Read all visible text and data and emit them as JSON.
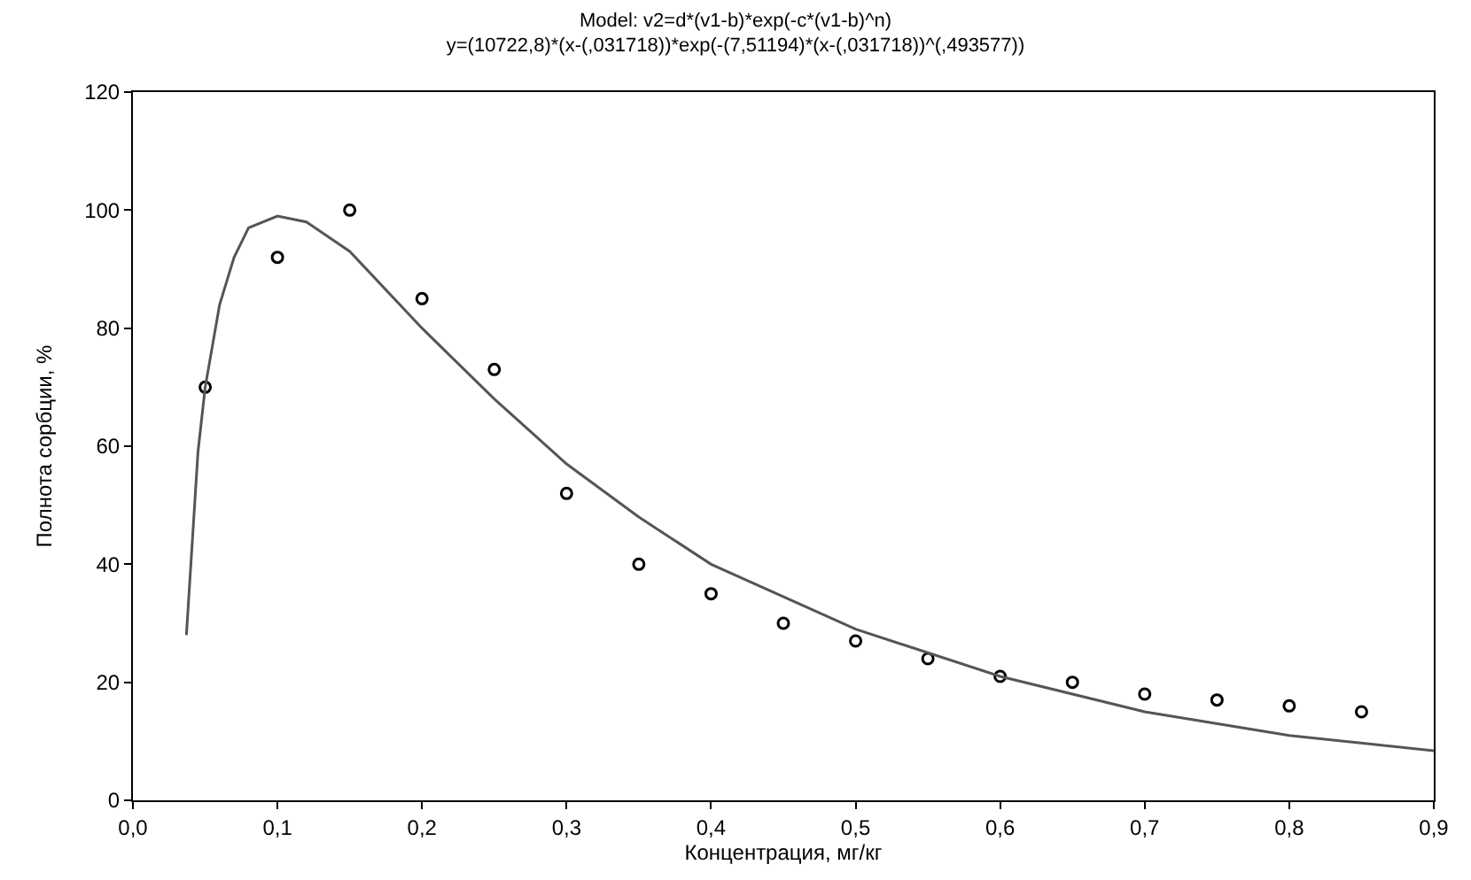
{
  "chart_data": {
    "type": "scatter",
    "title": "Model: v2=d*(v1-b)*exp(-c*(v1-b)^n)",
    "subtitle": "y=(10722,8)*(x-(,031718))*exp(-(7,51194)*(x-(,031718))^(,493577))",
    "xlabel": "Концентрация, мг/кг",
    "ylabel": "Полнота сорбции, %",
    "xlim": [
      0,
      0.9
    ],
    "ylim": [
      0,
      120
    ],
    "xticks": [
      {
        "value": 0,
        "label": "0,0"
      },
      {
        "value": 0.1,
        "label": "0,1"
      },
      {
        "value": 0.2,
        "label": "0,2"
      },
      {
        "value": 0.3,
        "label": "0,3"
      },
      {
        "value": 0.4,
        "label": "0,4"
      },
      {
        "value": 0.5,
        "label": "0,5"
      },
      {
        "value": 0.6,
        "label": "0,6"
      },
      {
        "value": 0.7,
        "label": "0,7"
      },
      {
        "value": 0.8,
        "label": "0,8"
      },
      {
        "value": 0.9,
        "label": "0,9"
      }
    ],
    "yticks": [
      0,
      20,
      40,
      60,
      80,
      100,
      120
    ],
    "series": [
      {
        "marker": "circle",
        "color": "#000000",
        "x": [
          0.05,
          0.1,
          0.15,
          0.2,
          0.25,
          0.3,
          0.35,
          0.4,
          0.45,
          0.5,
          0.55,
          0.6,
          0.65,
          0.7,
          0.75,
          0.8,
          0.85
        ],
        "values": [
          70,
          92,
          100,
          85,
          73,
          52,
          40,
          35,
          30,
          27,
          24,
          21,
          20,
          18,
          17,
          16,
          15
        ]
      },
      {
        "type": "line",
        "marker": "none",
        "line_style": "solid",
        "color": "#555555",
        "x": [
          0.037,
          0.045,
          0.05,
          0.06,
          0.07,
          0.08,
          0.1,
          0.12,
          0.15,
          0.2,
          0.25,
          0.3,
          0.35,
          0.4,
          0.5,
          0.6,
          0.7,
          0.8,
          0.9
        ],
        "values": [
          28,
          59,
          70,
          84,
          92,
          97,
          99,
          98,
          93,
          80,
          68,
          57,
          48,
          40,
          29,
          21,
          15,
          11,
          8.4
        ]
      }
    ]
  }
}
